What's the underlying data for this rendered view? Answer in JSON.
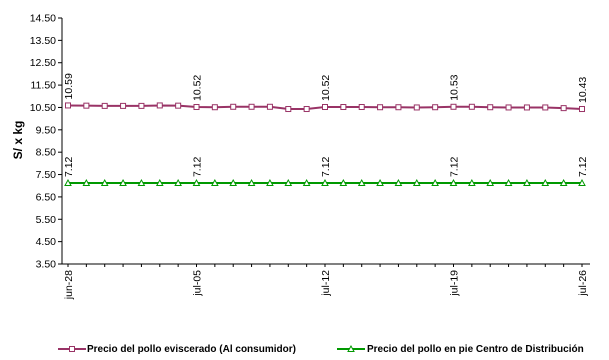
{
  "chart_data": {
    "type": "line",
    "title": "",
    "xlabel": "",
    "ylabel": "S/ x kg",
    "ylim": [
      3.5,
      14.5
    ],
    "yticks": [
      "3.50",
      "4.50",
      "5.50",
      "6.50",
      "7.50",
      "8.50",
      "9.50",
      "10.50",
      "11.50",
      "12.50",
      "13.50",
      "14.50"
    ],
    "x": [
      "jun-28",
      "jun-29",
      "jun-30",
      "jul-01",
      "jul-02",
      "jul-03",
      "jul-04",
      "jul-05",
      "jul-06",
      "jul-07",
      "jul-08",
      "jul-09",
      "jul-10",
      "jul-11",
      "jul-12",
      "jul-13",
      "jul-14",
      "jul-15",
      "jul-16",
      "jul-17",
      "jul-18",
      "jul-19",
      "jul-20",
      "jul-21",
      "jul-22",
      "jul-23",
      "jul-24",
      "jul-25",
      "jul-26"
    ],
    "xtick_labels": [
      "jun-28",
      "jul-05",
      "jul-12",
      "jul-19",
      "jul-26"
    ],
    "grid": false,
    "legend_position": "bottom",
    "series": [
      {
        "name": "Precio del pollo eviscerado (Al consumidor)",
        "color": "#993366",
        "marker": "square",
        "values": [
          10.59,
          10.58,
          10.57,
          10.57,
          10.57,
          10.59,
          10.58,
          10.52,
          10.51,
          10.53,
          10.53,
          10.53,
          10.43,
          10.43,
          10.52,
          10.52,
          10.52,
          10.51,
          10.51,
          10.5,
          10.51,
          10.53,
          10.53,
          10.51,
          10.5,
          10.5,
          10.5,
          10.47,
          10.43
        ],
        "data_labels": [
          {
            "x": "jun-28",
            "text": "10.59"
          },
          {
            "x": "jul-05",
            "text": "10.52"
          },
          {
            "x": "jul-12",
            "text": "10.52"
          },
          {
            "x": "jul-19",
            "text": "10.53"
          },
          {
            "x": "jul-26",
            "text": "10.43"
          }
        ]
      },
      {
        "name": "Precio del pollo en pie Centro de Distribución",
        "color": "#009900",
        "marker": "triangle",
        "values": [
          7.12,
          7.12,
          7.12,
          7.12,
          7.12,
          7.12,
          7.12,
          7.12,
          7.12,
          7.12,
          7.12,
          7.12,
          7.12,
          7.12,
          7.12,
          7.12,
          7.12,
          7.12,
          7.12,
          7.12,
          7.12,
          7.12,
          7.12,
          7.12,
          7.12,
          7.12,
          7.12,
          7.12,
          7.12
        ],
        "data_labels": [
          {
            "x": "jun-28",
            "text": "7.12"
          },
          {
            "x": "jul-05",
            "text": "7.12"
          },
          {
            "x": "jul-12",
            "text": "7.12"
          },
          {
            "x": "jul-19",
            "text": "7.12"
          },
          {
            "x": "jul-26",
            "text": "7.12"
          }
        ]
      }
    ]
  }
}
